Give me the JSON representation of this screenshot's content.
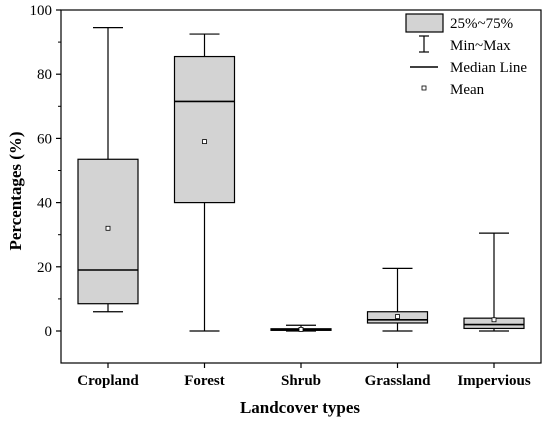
{
  "chart_data": {
    "type": "box",
    "xlabel": "Landcover types",
    "ylabel": "Percentages (%)",
    "ylim": [
      0,
      100
    ],
    "y_ticks": [
      0,
      20,
      40,
      60,
      80,
      100
    ],
    "categories": [
      "Cropland",
      "Forest",
      "Shrub",
      "Grassland",
      "Impervious"
    ],
    "boxes": [
      {
        "category": "Cropland",
        "min": 6.0,
        "q1": 8.5,
        "median": 19.0,
        "q3": 53.5,
        "max": 94.5,
        "mean": 32.0
      },
      {
        "category": "Forest",
        "min": 0.0,
        "q1": 40.0,
        "median": 71.5,
        "q3": 85.5,
        "max": 92.5,
        "mean": 59.0
      },
      {
        "category": "Shrub",
        "min": 0.0,
        "q1": 0.2,
        "median": 0.4,
        "q3": 0.7,
        "max": 1.8,
        "mean": 0.5
      },
      {
        "category": "Grassland",
        "min": 0.0,
        "q1": 2.5,
        "median": 3.5,
        "q3": 6.0,
        "max": 19.5,
        "mean": 4.5
      },
      {
        "category": "Impervious",
        "min": 0.0,
        "q1": 0.8,
        "median": 2.0,
        "q3": 4.0,
        "max": 30.5,
        "mean": 3.5
      }
    ],
    "legend": {
      "placement": "top-right",
      "entries": {
        "box": "25%~75%",
        "whisker": "Min~Max",
        "median": "Median Line",
        "mean": "Mean"
      }
    },
    "colors": {
      "box_fill": "#d3d3d3",
      "line": "#000000"
    },
    "grid": false
  }
}
